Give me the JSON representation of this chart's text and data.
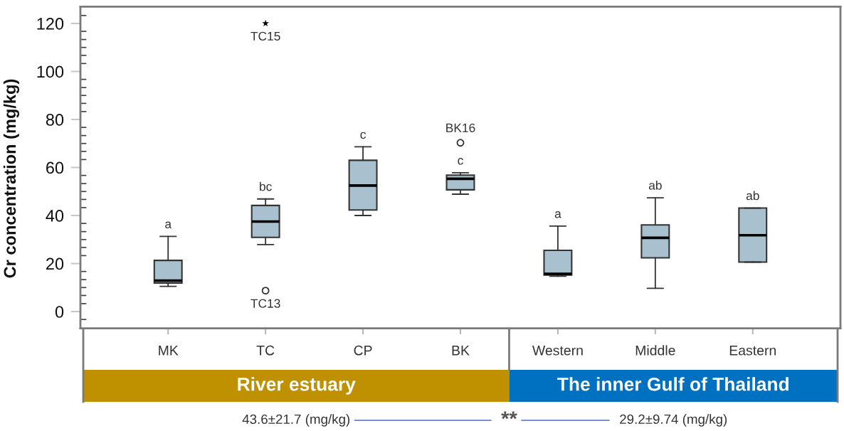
{
  "chart_data": {
    "type": "box",
    "ylabel": "Cr concentration (mg/kg)",
    "categories": [
      "MK",
      "TC",
      "CP",
      "BK",
      "Western",
      "Middle",
      "Eastern"
    ],
    "series": [
      {
        "color": "#a9c1cf",
        "boxes": [
          {
            "low": 10.5,
            "q1": 11.9,
            "median": 12.9,
            "q3": 21.3,
            "high": 31.3
          },
          {
            "low": 27.9,
            "q1": 30.9,
            "median": 37.5,
            "q3": 44.2,
            "high": 46.9,
            "outliers": [
              8.7
            ]
          },
          {
            "low": 40.0,
            "q1": 42.3,
            "median": 52.5,
            "q3": 63.0,
            "high": 68.6
          },
          {
            "low": 48.9,
            "q1": 50.7,
            "median": 55.3,
            "q3": 56.8,
            "high": 57.8,
            "outliers": [
              70.3
            ]
          },
          {
            "low": 14.7,
            "q1": 15.2,
            "median": 15.7,
            "q3": 25.5,
            "high": 35.6
          },
          {
            "low": 9.7,
            "q1": 22.4,
            "median": 30.7,
            "q3": 36.1,
            "high": 47.4
          },
          {
            "low": 20.6,
            "q1": 20.6,
            "median": 31.8,
            "q3": 43.1,
            "high": 43.1
          }
        ]
      },
      {
        "type": "scatter",
        "x": [
          "TC"
        ],
        "values": [
          120
        ],
        "color": "#000000",
        "marker": "star"
      }
    ],
    "ylim": [
      -7,
      127
    ],
    "yticks": [
      0,
      20,
      40,
      60,
      80,
      100,
      120,
      {
        "value": -3.3,
        "label": null
      },
      {
        "value": 3.3,
        "label": null
      },
      {
        "value": 6.7,
        "label": null
      },
      {
        "value": 10,
        "label": null
      },
      {
        "value": 13.3,
        "label": null
      },
      {
        "value": 16.7,
        "label": null
      },
      {
        "value": 23.3,
        "label": null
      },
      {
        "value": 26.7,
        "label": null
      },
      {
        "value": 30,
        "label": null
      },
      {
        "value": 33.3,
        "label": null
      },
      {
        "value": 36.7,
        "label": null
      },
      {
        "value": 43.3,
        "label": null
      },
      {
        "value": 46.7,
        "label": null
      },
      {
        "value": 50,
        "label": null
      },
      {
        "value": 53.3,
        "label": null
      },
      {
        "value": 56.7,
        "label": null
      },
      {
        "value": 63.3,
        "label": null
      },
      {
        "value": 66.7,
        "label": null
      },
      {
        "value": 70,
        "label": null
      },
      {
        "value": 73.3,
        "label": null
      },
      {
        "value": 76.7,
        "label": null
      },
      {
        "value": 83.3,
        "label": null
      },
      {
        "value": 86.7,
        "label": null
      },
      {
        "value": 90,
        "label": null
      },
      {
        "value": 93.3,
        "label": null
      },
      {
        "value": 96.7,
        "label": null
      },
      {
        "value": 103.3,
        "label": null
      },
      {
        "value": 106.7,
        "label": null
      },
      {
        "value": 110,
        "label": null
      },
      {
        "value": 113.3,
        "label": null
      },
      {
        "value": 116.7,
        "label": null
      },
      {
        "value": 123.3,
        "label": null
      }
    ],
    "annotations": [
      "a",
      "bc",
      "c",
      "c",
      "a",
      "ab",
      "ab",
      {
        "text": "TC15",
        "x": "TC",
        "y": 120
      },
      "TC13",
      "BK16",
      "River estuary",
      "The inner Gulf of Thailand",
      "43.6±21.7 (mg/kg)",
      "**",
      "29.2±9.74 (mg/kg)"
    ]
  }
}
